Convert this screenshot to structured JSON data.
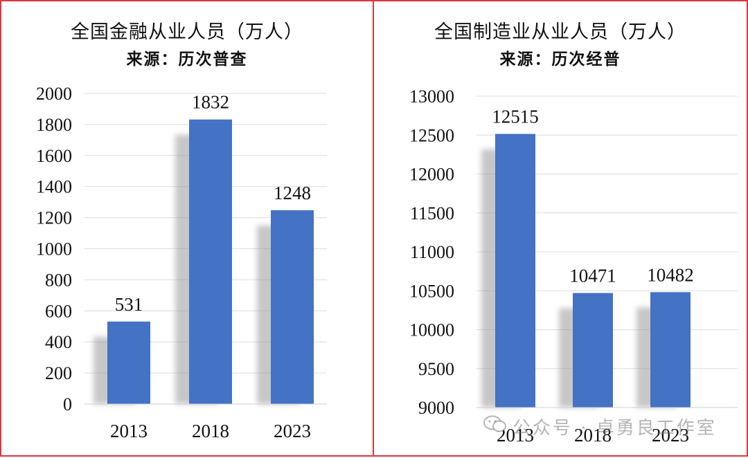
{
  "watermark": {
    "text": "公众号 · 卓勇良工作室",
    "icon": "wechat-icon"
  },
  "colors": {
    "bar": "#4472c4",
    "shadow": "#9a9a9a",
    "border": "#d9363e"
  },
  "chart_data": [
    {
      "type": "bar",
      "title": "全国金融从业人员（万人）",
      "subtitle": "来源：历次普查",
      "categories": [
        "2013",
        "2018",
        "2023"
      ],
      "values": [
        531,
        1832,
        1248
      ],
      "ylim": [
        0,
        2000
      ],
      "yticks": [
        0,
        200,
        400,
        600,
        800,
        1000,
        1200,
        1400,
        1600,
        1800,
        2000
      ],
      "grid": true
    },
    {
      "type": "bar",
      "title": "全国制造业从业人员（万人）",
      "subtitle": "来源：历次经普",
      "categories": [
        "2013",
        "2018",
        "2023"
      ],
      "values": [
        12515,
        10471,
        10482
      ],
      "ylim": [
        9000,
        13000
      ],
      "yticks": [
        9000,
        9500,
        10000,
        10500,
        11000,
        11500,
        12000,
        12500,
        13000
      ],
      "grid": true
    }
  ]
}
